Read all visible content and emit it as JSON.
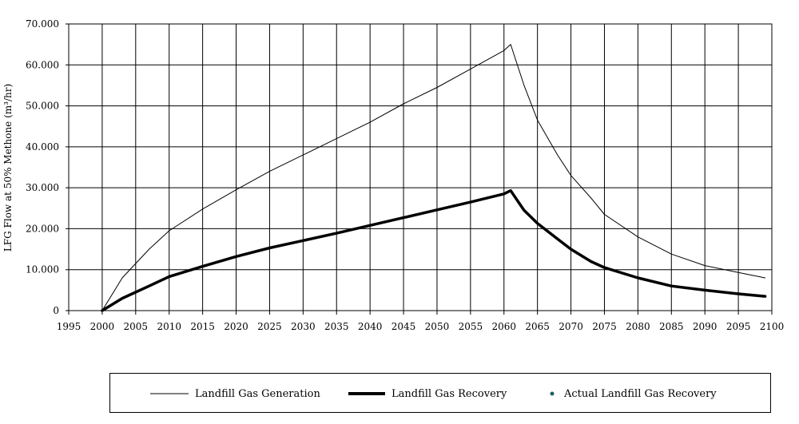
{
  "chart_data": {
    "type": "line",
    "title": "",
    "xlabel": "",
    "ylabel": "LFG Flow at 50% Methone (m³/hr)",
    "xlim": [
      1995,
      2100
    ],
    "ylim": [
      0,
      70000
    ],
    "x_ticks": [
      1995,
      2000,
      2005,
      2010,
      2015,
      2020,
      2025,
      2030,
      2035,
      2040,
      2045,
      2050,
      2055,
      2060,
      2065,
      2070,
      2075,
      2080,
      2085,
      2090,
      2095,
      2100
    ],
    "y_ticks": [
      0,
      10000,
      20000,
      30000,
      40000,
      50000,
      60000,
      70000
    ],
    "y_tick_labels": [
      "0",
      "10.000",
      "20.000",
      "30.000",
      "40.000",
      "50.000",
      "60.000",
      "70.000"
    ],
    "grid": true,
    "legend_position": "bottom",
    "series": [
      {
        "name": "Landfill Gas Generation",
        "color": "#000000",
        "style": "thin",
        "points": [
          [
            2000,
            0
          ],
          [
            2003,
            8000
          ],
          [
            2007,
            15000
          ],
          [
            2010,
            19500
          ],
          [
            2015,
            24800
          ],
          [
            2020,
            29500
          ],
          [
            2025,
            34000
          ],
          [
            2030,
            38000
          ],
          [
            2035,
            42000
          ],
          [
            2040,
            46000
          ],
          [
            2045,
            50500
          ],
          [
            2050,
            54500
          ],
          [
            2055,
            59000
          ],
          [
            2060,
            63500
          ],
          [
            2061,
            65000
          ],
          [
            2063,
            55000
          ],
          [
            2065,
            46500
          ],
          [
            2068,
            38000
          ],
          [
            2070,
            33000
          ],
          [
            2073,
            27500
          ],
          [
            2075,
            23500
          ],
          [
            2080,
            18000
          ],
          [
            2085,
            13800
          ],
          [
            2090,
            11000
          ],
          [
            2095,
            9300
          ],
          [
            2099,
            8000
          ]
        ]
      },
      {
        "name": "Landfill Gas Recovery",
        "color": "#000000",
        "style": "thick",
        "points": [
          [
            2000,
            0
          ],
          [
            2003,
            3000
          ],
          [
            2007,
            6000
          ],
          [
            2010,
            8300
          ],
          [
            2015,
            10800
          ],
          [
            2020,
            13200
          ],
          [
            2025,
            15300
          ],
          [
            2030,
            17100
          ],
          [
            2035,
            18900
          ],
          [
            2040,
            20800
          ],
          [
            2045,
            22700
          ],
          [
            2050,
            24600
          ],
          [
            2055,
            26500
          ],
          [
            2060,
            28500
          ],
          [
            2061,
            29300
          ],
          [
            2063,
            24500
          ],
          [
            2065,
            21300
          ],
          [
            2068,
            17500
          ],
          [
            2070,
            15000
          ],
          [
            2073,
            12000
          ],
          [
            2075,
            10500
          ],
          [
            2080,
            8000
          ],
          [
            2085,
            6000
          ],
          [
            2090,
            5000
          ],
          [
            2095,
            4100
          ],
          [
            2099,
            3500
          ]
        ]
      },
      {
        "name": "Actual Landfill Gas Recovery",
        "color": "#1f5f5f",
        "style": "marker",
        "points": []
      }
    ]
  }
}
